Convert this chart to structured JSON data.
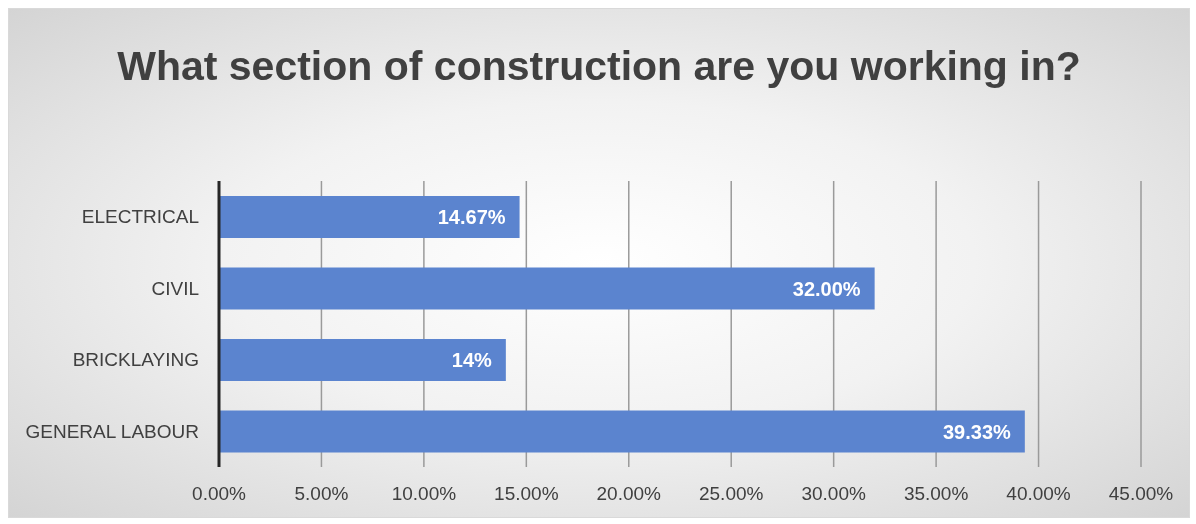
{
  "chart_data": {
    "type": "bar",
    "orientation": "horizontal",
    "title": "What section of construction are you working in?",
    "categories": [
      "ELECTRICAL",
      "CIVIL",
      "BRICKLAYING",
      "GENERAL LABOUR"
    ],
    "values": [
      14.67,
      32,
      14,
      39.33
    ],
    "value_labels": [
      "14.67%",
      "32.00%",
      "14%",
      "39.33%"
    ],
    "color": "#5b84cf",
    "xlim": [
      0,
      45
    ],
    "xticks": [
      {
        "value": 0,
        "label": "0.00%"
      },
      {
        "value": 5,
        "label": "5.00%"
      },
      {
        "value": 10,
        "label": "10.00%"
      },
      {
        "value": 15,
        "label": "15.00%"
      },
      {
        "value": 20,
        "label": "20.00%"
      },
      {
        "value": 25,
        "label": "25.00%"
      },
      {
        "value": 30,
        "label": "30.00%"
      },
      {
        "value": 35,
        "label": "35.00%"
      },
      {
        "value": 40,
        "label": "40.00%"
      },
      {
        "value": 45,
        "label": "45.00%"
      }
    ],
    "grid": "x"
  }
}
